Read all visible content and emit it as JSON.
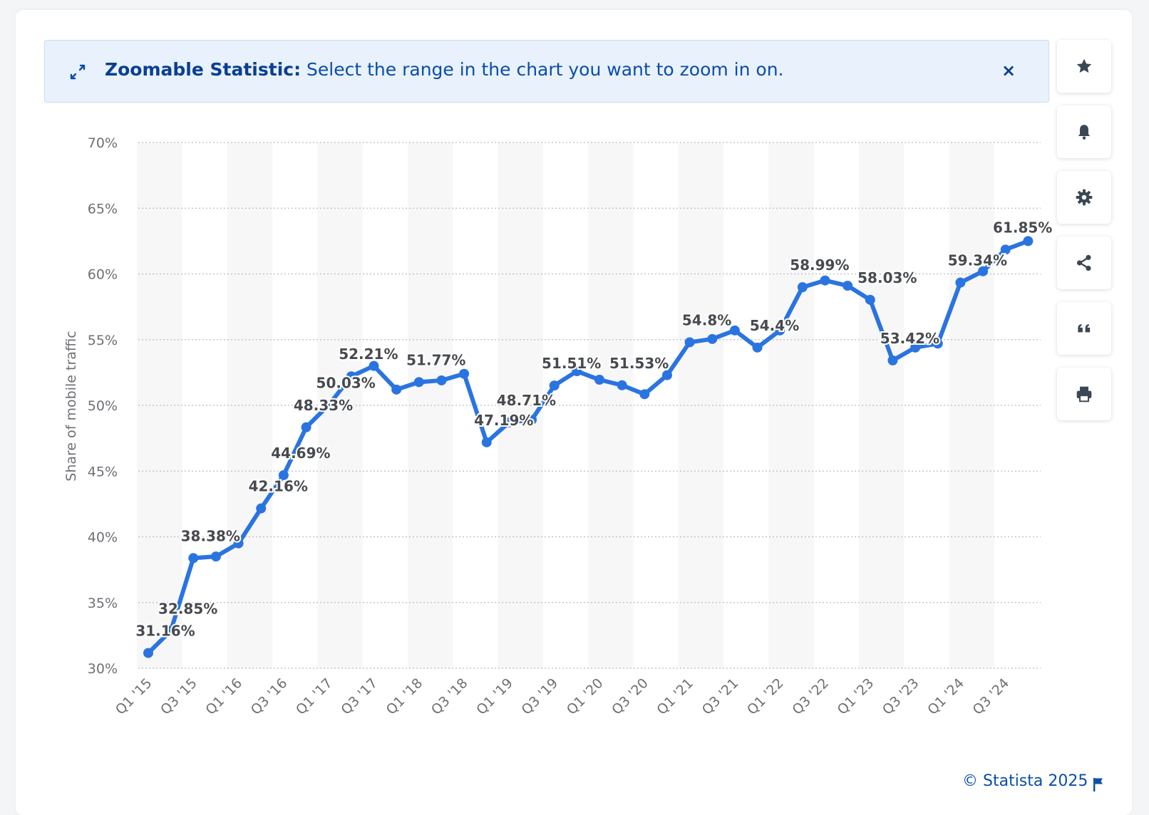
{
  "banner": {
    "title": "Zoomable Statistic:",
    "message": "Select the range in the chart you want to zoom in on.",
    "close_symbol": "×",
    "icon": "expand-arrows-icon"
  },
  "toolbar": {
    "items": [
      {
        "icon": "star-icon"
      },
      {
        "icon": "bell-icon"
      },
      {
        "icon": "gear-icon"
      },
      {
        "icon": "share-icon"
      },
      {
        "icon": "quote-icon"
      },
      {
        "icon": "print-icon"
      }
    ]
  },
  "footer": {
    "copyright": "© Statista 2025",
    "icon": "flag-icon"
  },
  "colors": {
    "line": "#2a74e1",
    "banner_text": "#0a4ea8",
    "band": "#f7f7f8",
    "grid": "#b8bcc2",
    "axis_text": "#6d7075",
    "label_text": "#474a4f"
  },
  "chart_data": {
    "type": "line",
    "ylabel": "Share of mobile traffic",
    "ylim": [
      30,
      70
    ],
    "yticks": [
      "30%",
      "35%",
      "40%",
      "45%",
      "50%",
      "55%",
      "60%",
      "65%",
      "70%"
    ],
    "grid": true,
    "categories": [
      "Q1 '15",
      "Q2 '15",
      "Q3 '15",
      "Q4 '15",
      "Q1 '16",
      "Q2 '16",
      "Q3 '16",
      "Q4 '16",
      "Q1 '17",
      "Q2 '17",
      "Q3 '17",
      "Q4 '17",
      "Q1 '18",
      "Q2 '18",
      "Q3 '18",
      "Q4 '18",
      "Q1 '19",
      "Q2 '19",
      "Q3 '19",
      "Q4 '19",
      "Q1 '20",
      "Q2 '20",
      "Q3 '20",
      "Q4 '20",
      "Q1 '21",
      "Q2 '21",
      "Q3 '21",
      "Q4 '21",
      "Q1 '22",
      "Q2 '22",
      "Q3 '22",
      "Q4 '22",
      "Q1 '23",
      "Q2 '23",
      "Q3 '23",
      "Q4 '23",
      "Q1 '24",
      "Q2 '24",
      "Q3 '24",
      "Q4 '24"
    ],
    "tick_labels": [
      "Q1 '15",
      "Q3 '15",
      "Q1 '16",
      "Q3 '16",
      "Q1 '17",
      "Q3 '17",
      "Q1 '18",
      "Q3 '18",
      "Q1 '19",
      "Q3 '19",
      "Q1 '20",
      "Q3 '20",
      "Q1 '21",
      "Q3 '21",
      "Q1 '22",
      "Q3 '22",
      "Q1 '23",
      "Q3 '23",
      "Q1 '24",
      "Q3 '24"
    ],
    "series": [
      {
        "values": [
          31.16,
          32.85,
          38.38,
          38.5,
          39.5,
          42.16,
          44.69,
          48.33,
          50.03,
          52.21,
          53.0,
          51.2,
          51.77,
          51.9,
          52.4,
          47.19,
          48.71,
          48.9,
          51.51,
          52.6,
          51.95,
          51.53,
          50.85,
          52.3,
          54.8,
          55.05,
          55.7,
          54.4,
          55.7,
          58.99,
          59.5,
          59.1,
          58.03,
          53.42,
          54.4,
          54.7,
          59.34,
          60.2,
          61.85,
          62.5
        ]
      }
    ],
    "data_labels": [
      {
        "index": 0,
        "text": "31.16%"
      },
      {
        "index": 1,
        "text": "32.85%"
      },
      {
        "index": 2,
        "text": "38.38%"
      },
      {
        "index": 5,
        "text": "42.16%"
      },
      {
        "index": 6,
        "text": "44.69%"
      },
      {
        "index": 7,
        "text": "48.33%"
      },
      {
        "index": 8,
        "text": "50.03%"
      },
      {
        "index": 9,
        "text": "52.21%"
      },
      {
        "index": 12,
        "text": "51.77%"
      },
      {
        "index": 15,
        "text": "47.19%"
      },
      {
        "index": 16,
        "text": "48.71%"
      },
      {
        "index": 18,
        "text": "51.51%"
      },
      {
        "index": 21,
        "text": "51.53%"
      },
      {
        "index": 24,
        "text": "54.8%"
      },
      {
        "index": 27,
        "text": "54.4%"
      },
      {
        "index": 29,
        "text": "58.99%"
      },
      {
        "index": 32,
        "text": "58.03%"
      },
      {
        "index": 33,
        "text": "53.42%"
      },
      {
        "index": 36,
        "text": "59.34%"
      },
      {
        "index": 38,
        "text": "61.85%"
      }
    ]
  }
}
